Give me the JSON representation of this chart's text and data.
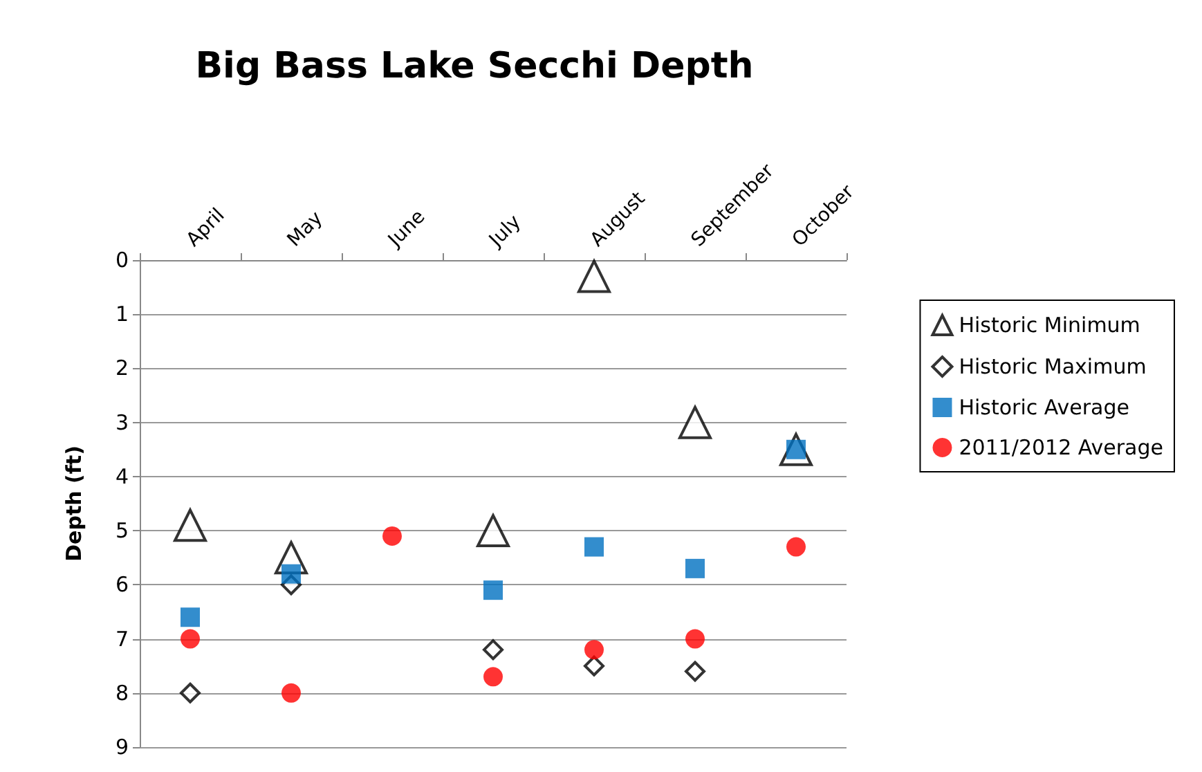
{
  "chart_data": {
    "type": "scatter",
    "title": "Big Bass Lake Secchi Depth",
    "ylabel": "Depth (ft)",
    "categories": [
      "April",
      "May",
      "June",
      "July",
      "August",
      "September",
      "October"
    ],
    "series": [
      {
        "name": "Historic Minimum",
        "color": "#000000",
        "marker": "triangle",
        "values": [
          4.9,
          5.5,
          null,
          5.0,
          0.3,
          3.0,
          3.5
        ]
      },
      {
        "name": "Historic Maximum",
        "color": "#000000",
        "marker": "diamond",
        "values": [
          8.0,
          6.0,
          null,
          7.2,
          7.5,
          7.6,
          null
        ]
      },
      {
        "name": "Historic Average",
        "color": "#0070c0",
        "marker": "square",
        "values": [
          6.6,
          5.8,
          null,
          6.1,
          5.3,
          5.7,
          3.5
        ]
      },
      {
        "name": "2011/2012 Average",
        "color": "#ff0000",
        "marker": "circle",
        "values": [
          7.0,
          8.0,
          5.1,
          7.7,
          7.2,
          7.0,
          5.3
        ]
      }
    ],
    "ylim": [
      9,
      0
    ],
    "yticks": [
      0,
      1,
      2,
      3,
      4,
      5,
      6,
      7,
      8,
      9
    ],
    "grid": "y",
    "legend": "right"
  }
}
